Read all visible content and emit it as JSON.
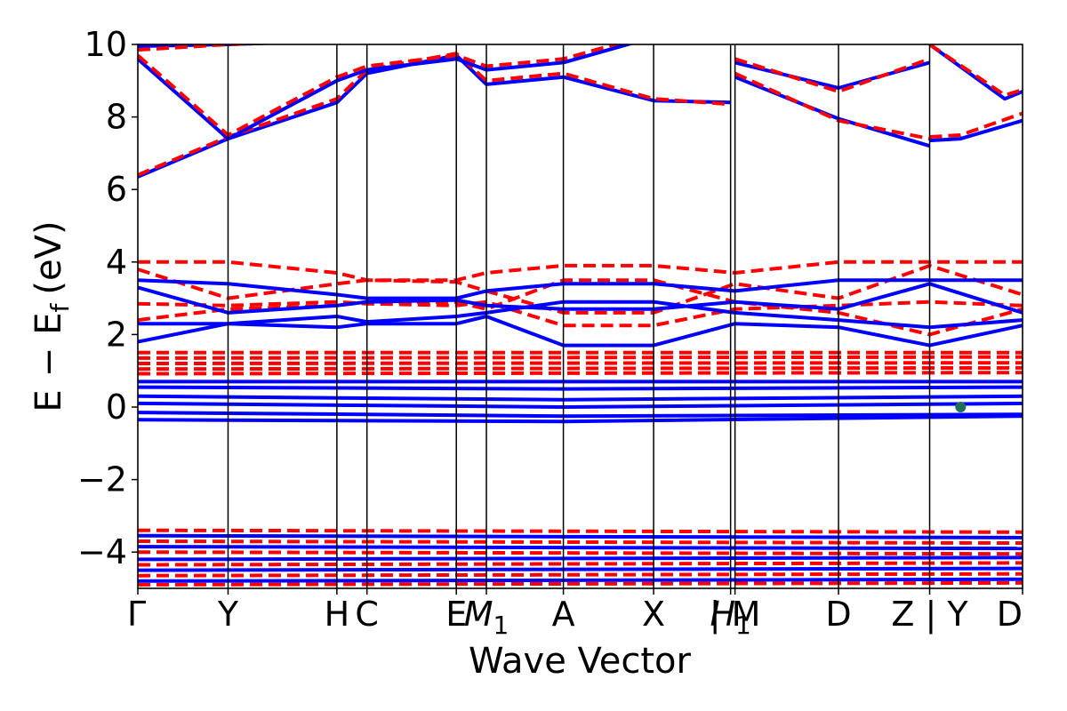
{
  "chart_data": {
    "type": "line",
    "title": "",
    "xlabel": "Wave Vector",
    "ylabel": "E − E_f (eV)",
    "ylabel_parts": {
      "a": "E",
      "minus": "−",
      "b": "E",
      "sub": "f",
      "unit": "(eV)"
    },
    "ylim": [
      -5,
      10
    ],
    "yticks": [
      -4,
      -2,
      0,
      2,
      4,
      6,
      8,
      10
    ],
    "ytick_labels": [
      "−4",
      "−2",
      "0",
      "2",
      "4",
      "6",
      "8",
      "10"
    ],
    "xlim": [
      0,
      1
    ],
    "kpoints": [
      {
        "x": 0.0,
        "label": "Γ",
        "sub": ""
      },
      {
        "x": 0.102,
        "label": "Y",
        "sub": ""
      },
      {
        "x": 0.225,
        "label": "H",
        "sub": ""
      },
      {
        "x": 0.259,
        "label": "C",
        "sub": ""
      },
      {
        "x": 0.36,
        "label": "E",
        "sub": ""
      },
      {
        "x": 0.394,
        "label": "M",
        "sub": "1"
      },
      {
        "x": 0.481,
        "label": "A",
        "sub": ""
      },
      {
        "x": 0.583,
        "label": "X",
        "sub": ""
      },
      {
        "x": 0.67,
        "label": "H",
        "sub": "1"
      },
      {
        "x": 0.675,
        "label": "| M",
        "sub": ""
      },
      {
        "x": 0.792,
        "label": "D",
        "sub": ""
      },
      {
        "x": 0.895,
        "label": "Z | Y",
        "sub": ""
      },
      {
        "x": 1.0,
        "label": "D",
        "sub": ""
      }
    ],
    "grid": false,
    "legend": "none",
    "series_colors": {
      "solid": "#0000ff",
      "dashed": "#ff0000"
    },
    "marker": {
      "x": 0.93,
      "y": 0.0,
      "color": "#1f6f5c"
    },
    "series": [
      {
        "style": "solid",
        "x": [
          0,
          0.102,
          0.225,
          0.259,
          0.36,
          0.394,
          0.481,
          0.583,
          0.67
        ],
        "y": [
          6.35,
          7.4,
          8.4,
          9.2,
          9.7,
          8.9,
          9.1,
          8.45,
          8.4
        ]
      },
      {
        "style": "dashed",
        "x": [
          0,
          0.102,
          0.225,
          0.259,
          0.36,
          0.394,
          0.481,
          0.583,
          0.67
        ],
        "y": [
          6.4,
          7.45,
          8.5,
          9.3,
          9.75,
          9.0,
          9.2,
          8.5,
          8.35
        ]
      },
      {
        "style": "solid",
        "x": [
          0,
          0.102,
          0.225,
          0.259,
          0.36,
          0.394,
          0.481,
          0.583
        ],
        "y": [
          9.6,
          7.4,
          9.0,
          9.3,
          9.6,
          9.3,
          9.5,
          10.2
        ]
      },
      {
        "style": "dashed",
        "x": [
          0,
          0.102,
          0.225,
          0.259,
          0.36,
          0.394,
          0.481,
          0.583
        ],
        "y": [
          9.7,
          7.5,
          9.1,
          9.4,
          9.7,
          9.4,
          9.6,
          10.3
        ]
      },
      {
        "style": "solid",
        "x": [
          0,
          0.102,
          0.225
        ],
        "y": [
          9.95,
          10.0,
          10.1
        ]
      },
      {
        "style": "dashed",
        "x": [
          0,
          0.102,
          0.225
        ],
        "y": [
          9.85,
          10.0,
          10.1
        ]
      },
      {
        "style": "solid",
        "x": [
          0.675,
          0.792,
          0.895
        ],
        "y": [
          9.5,
          8.8,
          9.5
        ]
      },
      {
        "style": "dashed",
        "x": [
          0.675,
          0.792,
          0.895
        ],
        "y": [
          9.6,
          8.7,
          9.6
        ]
      },
      {
        "style": "solid",
        "x": [
          0.675,
          0.792,
          0.895
        ],
        "y": [
          9.1,
          7.95,
          7.2
        ]
      },
      {
        "style": "dashed",
        "x": [
          0.675,
          0.792,
          0.895
        ],
        "y": [
          9.2,
          7.9,
          7.4
        ]
      },
      {
        "style": "solid",
        "x": [
          0.895,
          0.93,
          1.0
        ],
        "y": [
          7.35,
          7.4,
          7.9
        ]
      },
      {
        "style": "dashed",
        "x": [
          0.895,
          0.93,
          1.0
        ],
        "y": [
          7.45,
          7.5,
          8.1
        ]
      },
      {
        "style": "solid",
        "x": [
          0.895,
          0.98,
          1.0
        ],
        "y": [
          10.0,
          8.5,
          8.7
        ]
      },
      {
        "style": "dashed",
        "x": [
          0.895,
          0.98,
          1.0
        ],
        "y": [
          10.0,
          8.6,
          8.75
        ]
      },
      {
        "style": "dashed",
        "x": [
          0,
          0.102,
          0.225,
          0.259,
          0.36,
          0.394,
          0.481,
          0.583,
          0.675,
          0.792,
          0.895,
          1.0
        ],
        "y": [
          4.0,
          4.0,
          3.7,
          3.5,
          3.5,
          3.7,
          3.9,
          3.9,
          3.7,
          4.0,
          4.0,
          4.0
        ]
      },
      {
        "style": "dashed",
        "x": [
          0,
          0.102,
          0.225,
          0.259,
          0.36,
          0.394,
          0.481,
          0.583,
          0.675,
          0.792,
          0.895,
          1.0
        ],
        "y": [
          3.8,
          3.0,
          3.4,
          3.5,
          3.45,
          3.2,
          2.6,
          2.6,
          3.4,
          3.0,
          3.9,
          3.1
        ]
      },
      {
        "style": "dashed",
        "x": [
          0,
          0.102,
          0.225,
          0.259,
          0.36,
          0.394,
          0.481,
          0.583,
          0.675,
          0.792,
          0.895,
          1.0
        ],
        "y": [
          2.85,
          2.8,
          2.9,
          2.85,
          2.8,
          2.9,
          2.25,
          2.25,
          2.7,
          2.8,
          2.9,
          2.8
        ]
      },
      {
        "style": "dashed",
        "x": [
          0,
          0.102,
          0.225,
          0.259,
          0.36,
          0.394,
          0.481,
          0.583,
          0.675,
          0.792,
          0.895,
          1.0
        ],
        "y": [
          2.4,
          2.7,
          2.8,
          2.9,
          2.9,
          2.7,
          3.5,
          3.5,
          2.9,
          2.6,
          2.0,
          2.7
        ]
      },
      {
        "style": "dashed",
        "x": [
          0,
          1.0
        ],
        "y": [
          1.5,
          1.5
        ]
      },
      {
        "style": "dashed",
        "x": [
          0,
          1.0
        ],
        "y": [
          1.35,
          1.38
        ]
      },
      {
        "style": "dashed",
        "x": [
          0,
          1.0
        ],
        "y": [
          1.2,
          1.22
        ]
      },
      {
        "style": "dashed",
        "x": [
          0,
          1.0
        ],
        "y": [
          1.05,
          1.08
        ]
      },
      {
        "style": "dashed",
        "x": [
          0,
          1.0
        ],
        "y": [
          0.92,
          0.95
        ]
      },
      {
        "style": "solid",
        "x": [
          0,
          0.102,
          0.225,
          0.259,
          0.36,
          0.394,
          0.481,
          0.583,
          0.675,
          0.792,
          0.895,
          1.0
        ],
        "y": [
          3.5,
          3.4,
          3.1,
          3.0,
          3.0,
          3.2,
          3.4,
          3.4,
          3.2,
          3.5,
          3.5,
          3.5
        ]
      },
      {
        "style": "solid",
        "x": [
          0,
          0.102,
          0.225,
          0.259,
          0.36,
          0.394,
          0.481,
          0.583,
          0.675,
          0.792,
          0.895,
          1.0
        ],
        "y": [
          3.3,
          2.6,
          2.8,
          2.9,
          2.95,
          2.8,
          2.7,
          2.7,
          2.9,
          2.7,
          3.4,
          2.6
        ]
      },
      {
        "style": "solid",
        "x": [
          0,
          0.102,
          0.225,
          0.259,
          0.36,
          0.394,
          0.481,
          0.583,
          0.675,
          0.792,
          0.895,
          1.0
        ],
        "y": [
          2.3,
          2.3,
          2.5,
          2.35,
          2.5,
          2.6,
          2.9,
          2.9,
          2.6,
          2.4,
          2.2,
          2.4
        ]
      },
      {
        "style": "solid",
        "x": [
          0,
          0.102,
          0.225,
          0.259,
          0.36,
          0.394,
          0.481,
          0.583,
          0.675,
          0.792,
          0.895,
          1.0
        ],
        "y": [
          1.8,
          2.3,
          2.2,
          2.3,
          2.3,
          2.5,
          1.7,
          1.7,
          2.3,
          2.2,
          1.7,
          2.25
        ]
      },
      {
        "style": "solid",
        "x": [
          0,
          1.0
        ],
        "y": [
          0.7,
          0.7
        ]
      },
      {
        "style": "solid",
        "x": [
          0,
          0.481,
          1.0
        ],
        "y": [
          0.55,
          0.5,
          0.55
        ]
      },
      {
        "style": "solid",
        "x": [
          0,
          0.481,
          1.0
        ],
        "y": [
          0.3,
          0.2,
          0.3
        ]
      },
      {
        "style": "solid",
        "x": [
          0,
          0.481,
          1.0
        ],
        "y": [
          0.1,
          0.0,
          0.1
        ]
      },
      {
        "style": "solid",
        "x": [
          0,
          0.481,
          1.0
        ],
        "y": [
          -0.15,
          -0.25,
          -0.2
        ]
      },
      {
        "style": "solid",
        "x": [
          0,
          0.481,
          1.0
        ],
        "y": [
          -0.35,
          -0.4,
          -0.25
        ]
      },
      {
        "style": "dashed",
        "x": [
          0,
          1.0
        ],
        "y": [
          -3.4,
          -3.45
        ]
      },
      {
        "style": "dashed",
        "x": [
          0,
          1.0
        ],
        "y": [
          -3.7,
          -3.75
        ]
      },
      {
        "style": "dashed",
        "x": [
          0,
          1.0
        ],
        "y": [
          -4.0,
          -4.05
        ]
      },
      {
        "style": "dashed",
        "x": [
          0,
          1.0
        ],
        "y": [
          -4.35,
          -4.3
        ]
      },
      {
        "style": "dashed",
        "x": [
          0,
          1.0
        ],
        "y": [
          -4.65,
          -4.6
        ]
      },
      {
        "style": "dashed",
        "x": [
          0,
          1.0
        ],
        "y": [
          -4.9,
          -4.85
        ]
      },
      {
        "style": "solid",
        "x": [
          0,
          1.0
        ],
        "y": [
          -3.55,
          -3.6
        ]
      },
      {
        "style": "solid",
        "x": [
          0,
          1.0
        ],
        "y": [
          -3.85,
          -3.9
        ]
      },
      {
        "style": "solid",
        "x": [
          0,
          1.0
        ],
        "y": [
          -4.2,
          -4.15
        ]
      },
      {
        "style": "solid",
        "x": [
          0,
          1.0
        ],
        "y": [
          -4.5,
          -4.45
        ]
      },
      {
        "style": "solid",
        "x": [
          0,
          1.0
        ],
        "y": [
          -4.8,
          -4.75
        ]
      }
    ]
  }
}
